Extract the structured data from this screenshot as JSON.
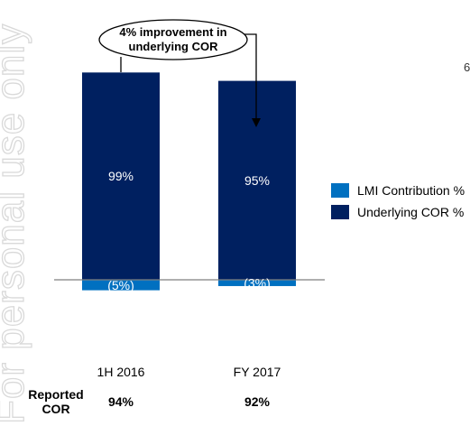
{
  "watermark": "For personal use only",
  "fragment_text": "6",
  "chart_data": {
    "type": "bar",
    "stacked": true,
    "categories": [
      "1H 2016",
      "FY 2017"
    ],
    "series": [
      {
        "name": "LMI Contribution %",
        "values": [
          -5,
          -3
        ],
        "labels": [
          "(5%)",
          "(3%)"
        ],
        "color": "#0070c0"
      },
      {
        "name": "Underlying COR %",
        "values": [
          99,
          95
        ],
        "labels": [
          "99%",
          "95%"
        ],
        "color": "#002060"
      }
    ],
    "ylim": [
      -15,
      140
    ],
    "grid": false,
    "legend_position": "right",
    "annotation": {
      "lines": [
        "4% improvement in",
        "underlying COR"
      ],
      "style": "callout-ellipse-arrow"
    },
    "reported": {
      "label_lines": [
        "Reported",
        "COR"
      ],
      "values": [
        "94%",
        "92%"
      ]
    }
  }
}
